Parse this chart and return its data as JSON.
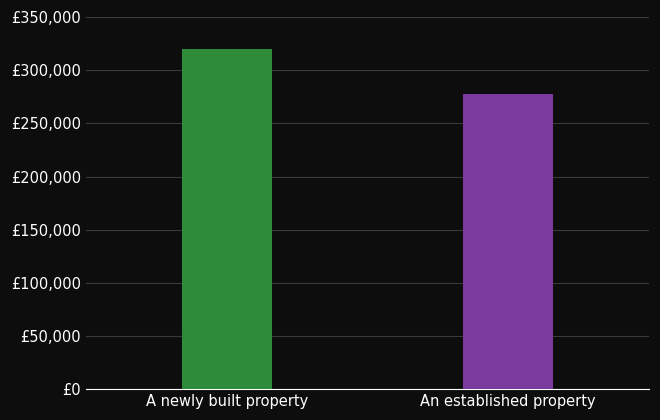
{
  "categories": [
    "A newly built property",
    "An established property"
  ],
  "values": [
    320000,
    278000
  ],
  "bar_colors": [
    "#2e8b3a",
    "#7b3a9e"
  ],
  "background_color": "#0d0d0d",
  "text_color": "#ffffff",
  "grid_color": "#3a3a3a",
  "ylim": [
    0,
    350000
  ],
  "yticks": [
    0,
    50000,
    100000,
    150000,
    200000,
    250000,
    300000,
    350000
  ],
  "bar_width": 0.32,
  "tick_fontsize": 10.5,
  "label_fontsize": 10.5
}
